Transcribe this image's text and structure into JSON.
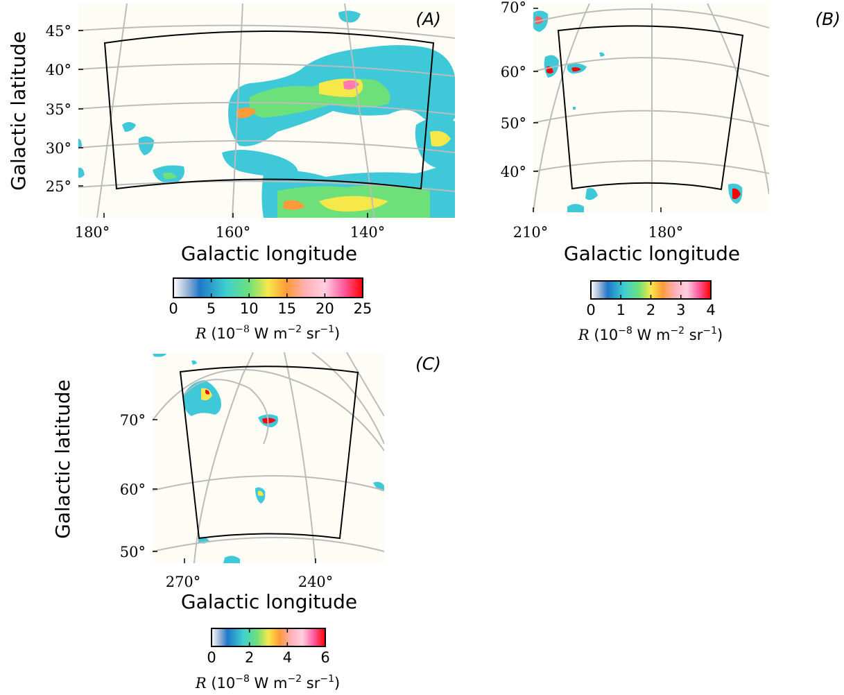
{
  "chart_data": [
    {
      "type": "heatmap",
      "panel": "(A)",
      "xlabel": "Galactic longitude",
      "ylabel": "Galactic latitude",
      "xticks": [
        "180°",
        "160°",
        "140°"
      ],
      "yticks": [
        "25°",
        "30°",
        "35°",
        "40°",
        "45°"
      ],
      "x_values": [
        180,
        160,
        140
      ],
      "y_values": [
        25,
        30,
        35,
        40,
        45
      ],
      "colorbar": {
        "ticks": [
          "0",
          "5",
          "10",
          "15",
          "20",
          "25"
        ],
        "range": [
          0,
          25
        ],
        "label_var": "R",
        "label_unit_a": "(10",
        "label_exp1": "−8",
        "label_unit_b": " W m",
        "label_exp2": "−2",
        "label_unit_c": " sr",
        "label_exp3": "−1",
        "label_close": ")"
      }
    },
    {
      "type": "heatmap",
      "panel": "(B)",
      "xlabel": "Galactic longitude",
      "xticks": [
        "210°",
        "180°"
      ],
      "yticks": [
        "40°",
        "50°",
        "60°",
        "70°"
      ],
      "x_values": [
        210,
        180
      ],
      "y_values": [
        40,
        50,
        60,
        70
      ],
      "colorbar": {
        "ticks": [
          "0",
          "1",
          "2",
          "3",
          "4"
        ],
        "range": [
          0,
          4
        ],
        "label_var": "R",
        "label_unit_a": "(10",
        "label_exp1": "−8",
        "label_unit_b": " W m",
        "label_exp2": "−2",
        "label_unit_c": " sr",
        "label_exp3": "−1",
        "label_close": ")"
      }
    },
    {
      "type": "heatmap",
      "panel": "(C)",
      "xlabel": "Galactic longitude",
      "ylabel": "Galactic latitude",
      "xticks": [
        "270°",
        "240°"
      ],
      "yticks": [
        "50°",
        "60°",
        "70°"
      ],
      "x_values": [
        270,
        240
      ],
      "y_values": [
        50,
        60,
        70
      ],
      "colorbar": {
        "ticks": [
          "0",
          "2",
          "4",
          "6"
        ],
        "range": [
          0,
          6
        ],
        "label_var": "R",
        "label_unit_a": "(10",
        "label_exp1": "−8",
        "label_unit_b": " W m",
        "label_exp2": "−2",
        "label_unit_c": " sr",
        "label_exp3": "−1",
        "label_close": ")"
      }
    }
  ],
  "colors": {
    "grid": "#bbbbbb",
    "frame": "#000000",
    "map_bg": "#fdfdf6",
    "colormap": [
      "#ffffff",
      "#1f78c8",
      "#3fd0d0",
      "#6ee07a",
      "#f7e84a",
      "#ff9a3a",
      "#ffb0b8",
      "#ff5aa0",
      "#ff0000"
    ]
  }
}
